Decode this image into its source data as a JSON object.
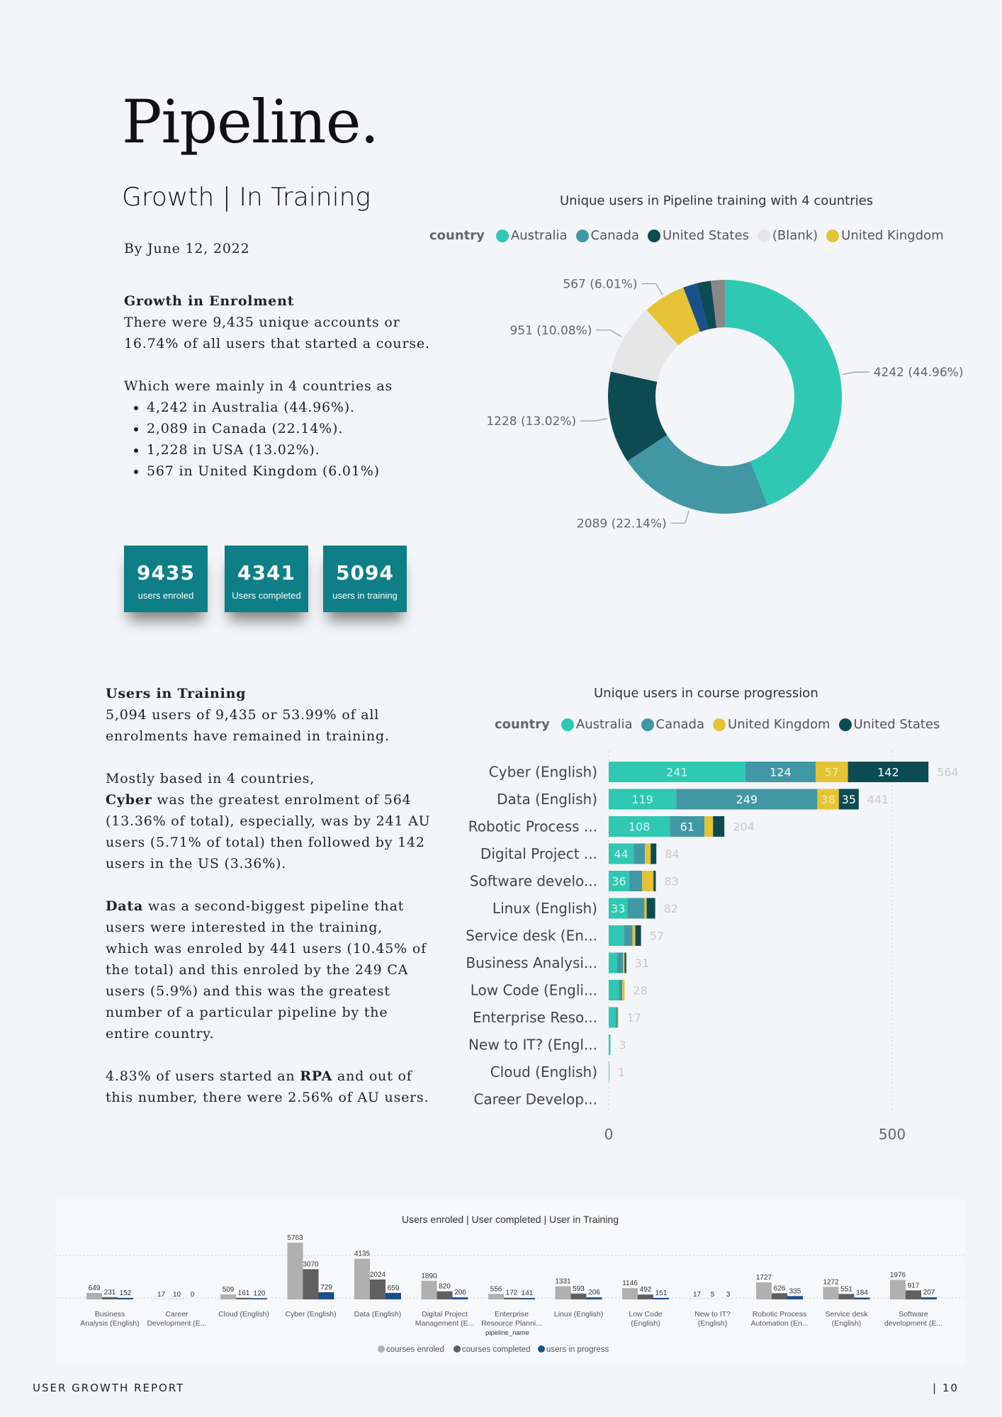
{
  "header": {
    "title": "Pipeline.",
    "subtitle": "Growth | In Training",
    "date": "By June 12, 2022"
  },
  "growth": {
    "heading": "Growth in Enrolment",
    "line1": "There were 9,435 unique accounts or",
    "line2": "16.74% of all users that started a course.",
    "intro": "Which were mainly in 4 countries as",
    "bullets": [
      "4,242 in Australia (44.96%).",
      "2,089 in Canada (22.14%).",
      "1,228 in USA (13.02%).",
      "567 in United Kingdom (6.01%)"
    ]
  },
  "kpis": [
    {
      "value": "9435",
      "label": "users enroled"
    },
    {
      "value": "4341",
      "label": "Users completed"
    },
    {
      "value": "5094",
      "label": "users in training"
    }
  ],
  "training": {
    "heading": "Users in Training",
    "p1": [
      "5,094 users of 9,435 or 53.99% of all",
      "enrolments have remained in training."
    ],
    "p2_lead": "Mostly based in 4 countries,",
    "p2_bold": "Cyber",
    "p2_first": " was the greatest enrolment of 564",
    "p2": [
      "(13.36% of total), especially, was by 241 AU",
      "users (5.71% of total) then followed by 142",
      "users in the US (3.36%)."
    ],
    "p3_bold": "Data",
    "p3_first": " was a second-biggest pipeline that",
    "p3": [
      "users were interested in the training,",
      "which was enroled by 441 users (10.45% of",
      "the total) and this enroled by the 249 CA",
      "users (5.9%) and this was the greatest",
      "number of a particular pipeline by the",
      "entire country."
    ],
    "p4_a": "4.83% of users started an ",
    "p4_bold": "RPA",
    "p4_b": " and out of",
    "p4_line2": "this number, there were 2.56% of AU users."
  },
  "colors": {
    "australia": "#2ec8b3",
    "canada": "#4297a4",
    "united_states": "#0d4b53",
    "blank": "#e6e6e6",
    "united_kingdom": "#e6c334",
    "enroled": "#b0b0b0",
    "completed": "#606060",
    "progress": "#1a4f8a",
    "kpi": "#0e7e87"
  },
  "chart_data": [
    {
      "type": "pie",
      "title": "Unique users in Pipeline training with 4 countries",
      "legend_title": "country",
      "legend_position": "top",
      "categories": [
        "Australia",
        "Canada",
        "United States",
        "(Blank)",
        "United Kingdom"
      ],
      "values": [
        4242,
        2089,
        1228,
        951,
        567
      ],
      "data_labels": [
        "4242 (44.96%)",
        "2089 (22.14%)",
        "1228 (13.02%)",
        "951 (10.08%)",
        "567 (6.01%)"
      ]
    },
    {
      "type": "bar",
      "orientation": "horizontal",
      "stacked": true,
      "title": "Unique users in course progression",
      "legend_title": "country",
      "legend_position": "top",
      "categories": [
        "Cyber (English)",
        "Data (English)",
        "Robotic Process ...",
        "Digital Project ...",
        "Software develo...",
        "Linux (English)",
        "Service desk (En...",
        "Business Analysi...",
        "Low Code (Engli...",
        "Enterprise Reso...",
        "New to IT? (Engl...",
        "Cloud (English)",
        "Career Develop..."
      ],
      "series": [
        {
          "name": "Australia",
          "values": [
            241,
            119,
            108,
            44,
            36,
            33,
            27,
            15,
            18,
            12,
            3,
            1,
            0
          ]
        },
        {
          "name": "Canada",
          "values": [
            124,
            249,
            61,
            20,
            23,
            30,
            15,
            10,
            6,
            4,
            0,
            0,
            0
          ]
        },
        {
          "name": "United Kingdom",
          "values": [
            57,
            38,
            15,
            10,
            20,
            4,
            5,
            3,
            4,
            1,
            0,
            0,
            0
          ]
        },
        {
          "name": "United States",
          "values": [
            142,
            35,
            20,
            10,
            4,
            15,
            10,
            3,
            0,
            0,
            0,
            0,
            0
          ]
        }
      ],
      "totals": [
        564,
        441,
        204,
        84,
        83,
        82,
        57,
        31,
        28,
        17,
        3,
        1,
        0
      ],
      "x_ticks": [
        0,
        500
      ],
      "xlim": [
        0,
        620
      ],
      "grid": true
    },
    {
      "type": "bar",
      "title": "Users enroled | User completed | User in Training",
      "xlabel": "pipeline_name",
      "categories": [
        "Business Analysis (English)",
        "Career Development (E...",
        "Cloud (English)",
        "Cyber (English)",
        "Data (English)",
        "Digital Project Management (E...",
        "Enterprise Resource Planni...",
        "Linux (English)",
        "Low Code (English)",
        "New to IT? (English)",
        "Robotic Process Automation (En...",
        "Service desk (English)",
        "Software development (E..."
      ],
      "series": [
        {
          "name": "courses enroled",
          "values": [
            649,
            17,
            509,
            5763,
            4135,
            1890,
            556,
            1331,
            1146,
            17,
            1727,
            1272,
            1976
          ]
        },
        {
          "name": "courses completed",
          "values": [
            231,
            10,
            161,
            3070,
            2024,
            820,
            172,
            593,
            492,
            5,
            626,
            551,
            917
          ]
        },
        {
          "name": "users in progress",
          "values": [
            152,
            0,
            120,
            729,
            659,
            206,
            141,
            206,
            151,
            3,
            335,
            184,
            207
          ]
        }
      ],
      "ylim": [
        0,
        5763
      ],
      "legend_position": "bottom"
    }
  ],
  "footer": {
    "left": "USER GROWTH REPORT",
    "right": "|  10"
  }
}
